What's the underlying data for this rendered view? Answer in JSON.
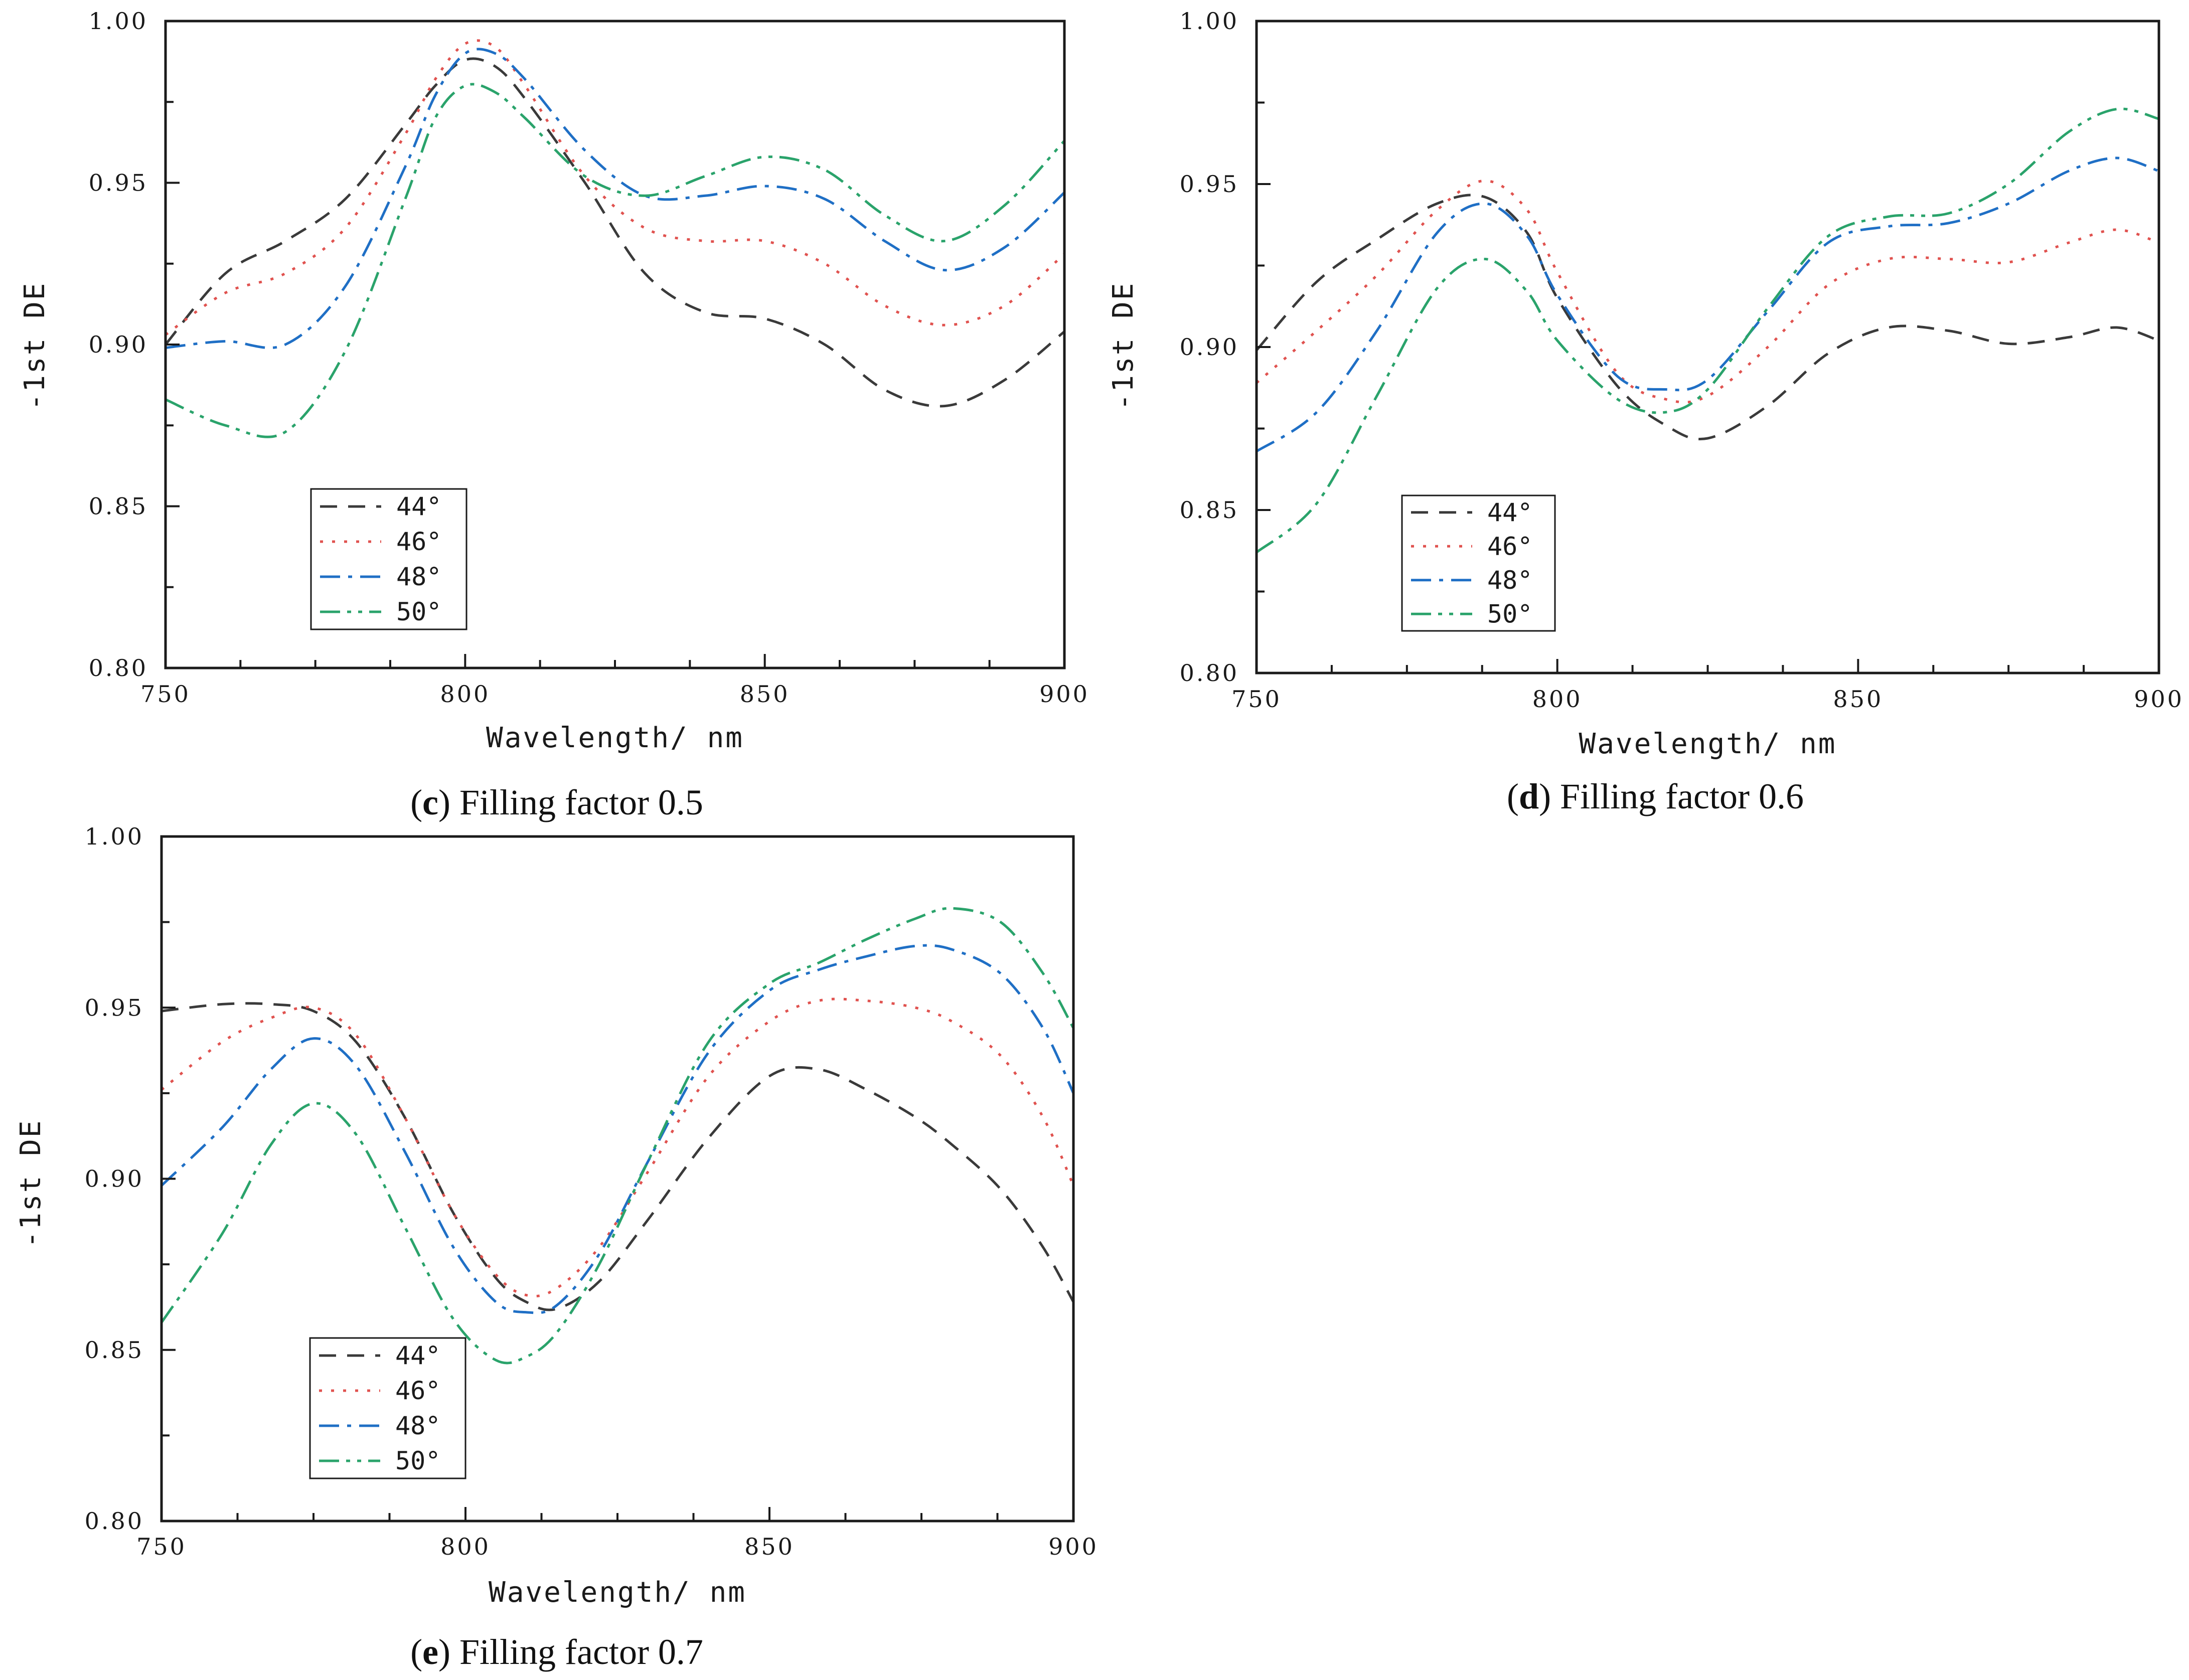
{
  "figure": {
    "panels": [
      {
        "id": "c",
        "caption_prefix": "(",
        "caption_letter": "c",
        "caption_rest": ") Filling factor 0.5"
      },
      {
        "id": "d",
        "caption_prefix": "(",
        "caption_letter": "d",
        "caption_rest": ") Filling factor 0.6"
      },
      {
        "id": "e",
        "caption_prefix": "(",
        "caption_letter": "e",
        "caption_rest": ") Filling factor 0.7"
      }
    ]
  },
  "series_styles": [
    {
      "name": "44°",
      "color": "#3a3a3a",
      "dash": "dashed"
    },
    {
      "name": "46°",
      "color": "#e0524f",
      "dash": "dotted"
    },
    {
      "name": "48°",
      "color": "#1f6fc5",
      "dash": "dashdot"
    },
    {
      "name": "50°",
      "color": "#2aa36b",
      "dash": "dashdotdot"
    }
  ],
  "chart_data": [
    {
      "type": "line",
      "panel": "c",
      "title": "Filling factor 0.5",
      "xlabel": "Wavelength/ nm",
      "ylabel": "-1st DE",
      "xlim": [
        750,
        900
      ],
      "ylim": [
        0.8,
        1.0
      ],
      "xticks": [
        "750",
        "800",
        "850",
        "900"
      ],
      "yticks": [
        "0.80",
        "0.85",
        "0.90",
        "0.95",
        "1.00"
      ],
      "legend": "lower-left",
      "x": [
        750,
        760,
        770,
        780,
        790,
        795,
        800,
        805,
        810,
        820,
        830,
        840,
        850,
        860,
        870,
        880,
        890,
        900
      ],
      "series": [
        {
          "name": "44°",
          "values": [
            0.9,
            0.922,
            0.932,
            0.945,
            0.968,
            0.98,
            0.988,
            0.986,
            0.976,
            0.95,
            0.922,
            0.91,
            0.908,
            0.9,
            0.886,
            0.881,
            0.889,
            0.904
          ]
        },
        {
          "name": "46°",
          "values": [
            0.903,
            0.916,
            0.922,
            0.936,
            0.965,
            0.982,
            0.993,
            0.992,
            0.98,
            0.952,
            0.936,
            0.932,
            0.932,
            0.925,
            0.912,
            0.906,
            0.912,
            0.928
          ]
        },
        {
          "name": "48°",
          "values": [
            0.899,
            0.901,
            0.9,
            0.918,
            0.955,
            0.977,
            0.99,
            0.99,
            0.982,
            0.96,
            0.946,
            0.946,
            0.949,
            0.945,
            0.932,
            0.923,
            0.93,
            0.947
          ]
        },
        {
          "name": "50°",
          "values": [
            0.883,
            0.875,
            0.873,
            0.898,
            0.945,
            0.97,
            0.98,
            0.978,
            0.97,
            0.952,
            0.946,
            0.952,
            0.958,
            0.954,
            0.94,
            0.932,
            0.943,
            0.963
          ]
        }
      ]
    },
    {
      "type": "line",
      "panel": "d",
      "title": "Filling factor 0.6",
      "xlabel": "Wavelength/ nm",
      "ylabel": "-1st DE",
      "xlim": [
        750,
        900
      ],
      "ylim": [
        0.8,
        1.0
      ],
      "xticks": [
        "750",
        "800",
        "850",
        "900"
      ],
      "yticks": [
        "0.80",
        "0.85",
        "0.90",
        "0.95",
        "1.00"
      ],
      "legend": "lower-left",
      "x": [
        750,
        760,
        770,
        780,
        788,
        795,
        800,
        810,
        818,
        825,
        835,
        845,
        855,
        865,
        875,
        885,
        893,
        900
      ],
      "series": [
        {
          "name": "44°",
          "values": [
            0.899,
            0.92,
            0.933,
            0.944,
            0.946,
            0.935,
            0.915,
            0.888,
            0.876,
            0.872,
            0.882,
            0.898,
            0.906,
            0.905,
            0.901,
            0.903,
            0.906,
            0.902
          ]
        },
        {
          "name": "46°",
          "values": [
            0.889,
            0.905,
            0.922,
            0.942,
            0.951,
            0.942,
            0.923,
            0.892,
            0.884,
            0.885,
            0.9,
            0.919,
            0.927,
            0.927,
            0.926,
            0.932,
            0.936,
            0.932
          ]
        },
        {
          "name": "48°",
          "values": [
            0.868,
            0.88,
            0.905,
            0.935,
            0.944,
            0.934,
            0.916,
            0.891,
            0.887,
            0.89,
            0.911,
            0.932,
            0.937,
            0.938,
            0.944,
            0.954,
            0.958,
            0.954
          ]
        },
        {
          "name": "50°",
          "values": [
            0.837,
            0.852,
            0.885,
            0.918,
            0.927,
            0.917,
            0.902,
            0.884,
            0.88,
            0.887,
            0.912,
            0.934,
            0.94,
            0.941,
            0.95,
            0.966,
            0.973,
            0.97
          ]
        }
      ]
    },
    {
      "type": "line",
      "panel": "e",
      "title": "Filling factor 0.7",
      "xlabel": "Wavelength/ nm",
      "ylabel": "-1st DE",
      "xlim": [
        750,
        900
      ],
      "ylim": [
        0.8,
        1.0
      ],
      "xticks": [
        "750",
        "800",
        "850",
        "900"
      ],
      "yticks": [
        "0.80",
        "0.85",
        "0.90",
        "0.95",
        "1.00"
      ],
      "legend": "lower-left",
      "x": [
        750,
        760,
        768,
        775,
        782,
        790,
        798,
        805,
        810,
        815,
        822,
        830,
        840,
        850,
        858,
        866,
        874,
        880,
        888,
        895,
        900
      ],
      "series": [
        {
          "name": "44°",
          "values": [
            0.949,
            0.951,
            0.951,
            0.949,
            0.94,
            0.918,
            0.89,
            0.871,
            0.864,
            0.862,
            0.87,
            0.888,
            0.912,
            0.93,
            0.932,
            0.926,
            0.918,
            0.91,
            0.897,
            0.88,
            0.864
          ]
        },
        {
          "name": "46°",
          "values": [
            0.926,
            0.94,
            0.947,
            0.95,
            0.942,
            0.918,
            0.89,
            0.872,
            0.866,
            0.868,
            0.88,
            0.902,
            0.93,
            0.946,
            0.952,
            0.952,
            0.95,
            0.946,
            0.936,
            0.918,
            0.898
          ]
        },
        {
          "name": "48°",
          "values": [
            0.898,
            0.915,
            0.932,
            0.941,
            0.933,
            0.908,
            0.88,
            0.864,
            0.861,
            0.863,
            0.878,
            0.905,
            0.937,
            0.955,
            0.961,
            0.965,
            0.968,
            0.967,
            0.96,
            0.944,
            0.925
          ]
        },
        {
          "name": "50°",
          "values": [
            0.858,
            0.884,
            0.91,
            0.922,
            0.913,
            0.886,
            0.859,
            0.847,
            0.848,
            0.855,
            0.875,
            0.905,
            0.94,
            0.957,
            0.963,
            0.97,
            0.976,
            0.979,
            0.975,
            0.96,
            0.944
          ]
        }
      ]
    }
  ]
}
